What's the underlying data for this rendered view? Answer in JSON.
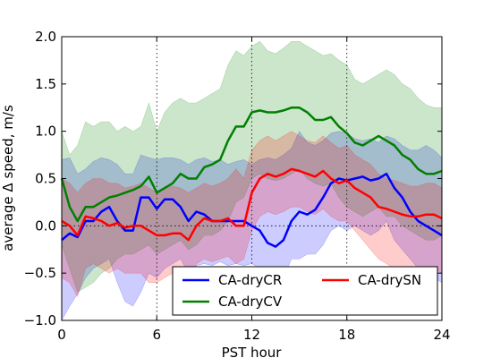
{
  "chart_data": {
    "type": "line",
    "title": "",
    "xlabel": "PST hour",
    "ylabel": "average Δ speed, m/s",
    "xlim": [
      0,
      24
    ],
    "ylim": [
      -1.0,
      2.0
    ],
    "x_ticks": [
      0,
      6,
      12,
      18,
      24
    ],
    "x_tick_labels": [
      "0",
      "6",
      "12",
      "18",
      "24"
    ],
    "y_ticks": [
      -1.0,
      -0.5,
      0.0,
      0.5,
      1.0,
      1.5,
      2.0
    ],
    "y_tick_labels": [
      "−1.0",
      "−0.5",
      "0.0",
      "0.5",
      "1.0",
      "1.5",
      "2.0"
    ],
    "vlines": [
      6,
      12,
      18
    ],
    "hline": 0,
    "legend_position": "bottom-right",
    "x": [
      0,
      0.5,
      1,
      1.5,
      2,
      2.5,
      3,
      3.5,
      4,
      4.5,
      5,
      5.5,
      6,
      6.5,
      7,
      7.5,
      8,
      8.5,
      9,
      9.5,
      10,
      10.5,
      11,
      11.5,
      12,
      12.5,
      13,
      13.5,
      14,
      14.5,
      15,
      15.5,
      16,
      16.5,
      17,
      17.5,
      18,
      18.5,
      19,
      19.5,
      20,
      20.5,
      21,
      21.5,
      22,
      22.5,
      23,
      23.5,
      24
    ],
    "series": [
      {
        "name": "CA-dryCR",
        "color": "#0000ff",
        "values": [
          -0.15,
          -0.08,
          -0.12,
          0.05,
          0.05,
          0.15,
          0.2,
          0.05,
          -0.05,
          -0.05,
          0.3,
          0.3,
          0.18,
          0.28,
          0.28,
          0.2,
          0.05,
          0.15,
          0.12,
          0.05,
          0.05,
          0.05,
          0.05,
          0.05,
          0.0,
          -0.05,
          -0.18,
          -0.22,
          -0.15,
          0.05,
          0.15,
          0.12,
          0.17,
          0.3,
          0.45,
          0.5,
          0.48,
          0.5,
          0.52,
          0.48,
          0.5,
          0.55,
          0.4,
          0.3,
          0.15,
          0.05,
          0.0,
          -0.05,
          -0.1
        ],
        "upper": [
          0.7,
          0.72,
          0.55,
          0.6,
          0.68,
          0.72,
          0.7,
          0.65,
          0.55,
          0.55,
          0.75,
          0.72,
          0.7,
          0.72,
          0.72,
          0.7,
          0.65,
          0.7,
          0.72,
          0.68,
          0.7,
          0.65,
          0.68,
          0.7,
          0.65,
          0.7,
          0.72,
          0.7,
          0.75,
          0.82,
          1.0,
          0.88,
          0.85,
          0.9,
          0.98,
          1.0,
          0.98,
          0.92,
          0.9,
          0.92,
          0.88,
          0.95,
          0.92,
          0.85,
          0.8,
          0.8,
          0.85,
          0.8,
          0.72
        ],
        "lower": [
          -1.0,
          -0.85,
          -0.72,
          -0.55,
          -0.45,
          -0.4,
          -0.35,
          -0.6,
          -0.8,
          -0.85,
          -0.7,
          -0.5,
          -0.55,
          -0.45,
          -0.4,
          -0.35,
          -0.5,
          -0.42,
          -0.4,
          -0.42,
          -0.38,
          -0.42,
          -0.4,
          -0.42,
          -0.4,
          -0.45,
          -0.55,
          -0.6,
          -0.55,
          -0.35,
          -0.35,
          -0.3,
          -0.3,
          -0.2,
          -0.05,
          0.0,
          -0.05,
          0.0,
          -0.05,
          -0.1,
          -0.05,
          0.05,
          -0.15,
          -0.25,
          -0.35,
          -0.45,
          -0.5,
          -0.55,
          -0.6
        ]
      },
      {
        "name": "CA-dryCV",
        "color": "#008000",
        "values": [
          0.5,
          0.2,
          0.05,
          0.2,
          0.2,
          0.25,
          0.3,
          0.32,
          0.35,
          0.38,
          0.42,
          0.52,
          0.35,
          0.4,
          0.45,
          0.55,
          0.5,
          0.5,
          0.62,
          0.65,
          0.7,
          0.9,
          1.05,
          1.05,
          1.2,
          1.22,
          1.2,
          1.2,
          1.22,
          1.25,
          1.25,
          1.2,
          1.12,
          1.12,
          1.15,
          1.05,
          0.98,
          0.88,
          0.85,
          0.9,
          0.95,
          0.9,
          0.85,
          0.75,
          0.7,
          0.6,
          0.55,
          0.55,
          0.58
        ],
        "upper": [
          1.0,
          0.75,
          0.85,
          1.1,
          1.05,
          1.1,
          1.1,
          1.0,
          1.05,
          1.0,
          1.05,
          1.3,
          1.0,
          1.2,
          1.3,
          1.35,
          1.3,
          1.3,
          1.35,
          1.4,
          1.45,
          1.7,
          1.85,
          1.8,
          1.9,
          1.95,
          1.85,
          1.82,
          1.88,
          1.95,
          1.95,
          1.9,
          1.85,
          1.8,
          1.82,
          1.75,
          1.7,
          1.55,
          1.5,
          1.55,
          1.6,
          1.65,
          1.6,
          1.5,
          1.45,
          1.35,
          1.28,
          1.25,
          1.25
        ],
        "lower": [
          -0.2,
          -0.45,
          -0.7,
          -0.65,
          -0.6,
          -0.5,
          -0.45,
          -0.35,
          -0.3,
          -0.3,
          -0.25,
          -0.2,
          -0.3,
          -0.25,
          -0.2,
          -0.15,
          -0.25,
          -0.2,
          -0.1,
          -0.1,
          -0.05,
          0.05,
          0.25,
          0.3,
          0.5,
          0.55,
          0.5,
          0.48,
          0.5,
          0.55,
          0.6,
          0.5,
          0.45,
          0.42,
          0.45,
          0.3,
          0.2,
          0.15,
          0.1,
          0.15,
          0.2,
          0.1,
          0.1,
          0.0,
          -0.05,
          -0.1,
          -0.15,
          -0.15,
          -0.1
        ]
      },
      {
        "name": "CA-drySN",
        "color": "#ff0000",
        "values": [
          0.05,
          0.0,
          -0.1,
          0.1,
          0.08,
          0.05,
          0.0,
          0.03,
          -0.02,
          0.0,
          0.0,
          -0.05,
          -0.1,
          -0.1,
          -0.08,
          -0.08,
          -0.15,
          0.0,
          0.08,
          0.05,
          0.05,
          0.08,
          0.0,
          0.0,
          0.35,
          0.5,
          0.55,
          0.52,
          0.55,
          0.6,
          0.58,
          0.55,
          0.52,
          0.58,
          0.5,
          0.45,
          0.48,
          0.4,
          0.35,
          0.3,
          0.2,
          0.18,
          0.15,
          0.12,
          0.1,
          0.1,
          0.12,
          0.12,
          0.08
        ],
        "upper": [
          0.5,
          0.45,
          0.35,
          0.45,
          0.5,
          0.5,
          0.45,
          0.45,
          0.4,
          0.42,
          0.45,
          0.4,
          0.35,
          0.4,
          0.42,
          0.4,
          0.35,
          0.4,
          0.45,
          0.42,
          0.45,
          0.5,
          0.6,
          0.5,
          0.8,
          0.9,
          0.95,
          0.9,
          0.95,
          1.0,
          0.95,
          0.9,
          0.88,
          0.95,
          0.88,
          0.82,
          0.85,
          0.75,
          0.7,
          0.65,
          0.55,
          0.5,
          0.48,
          0.45,
          0.42,
          0.42,
          0.45,
          0.45,
          0.4
        ],
        "lower": [
          -0.55,
          -0.6,
          -0.75,
          -0.45,
          -0.4,
          -0.45,
          -0.5,
          -0.45,
          -0.5,
          -0.5,
          -0.5,
          -0.6,
          -0.6,
          -0.55,
          -0.5,
          -0.55,
          -0.6,
          -0.4,
          -0.35,
          -0.38,
          -0.35,
          -0.32,
          -0.4,
          -0.35,
          -0.05,
          0.1,
          0.15,
          0.12,
          0.15,
          0.2,
          0.2,
          0.15,
          0.12,
          0.18,
          0.1,
          0.05,
          0.05,
          -0.05,
          -0.15,
          -0.25,
          -0.35,
          -0.4,
          -0.45,
          -0.5,
          -0.5,
          -0.5,
          -0.48,
          -0.45,
          -0.5
        ]
      }
    ]
  }
}
